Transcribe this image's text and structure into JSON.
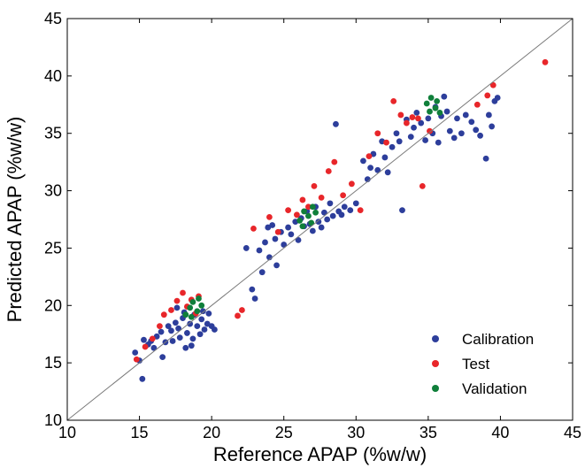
{
  "chart_data": {
    "type": "scatter",
    "xlabel": "Reference APAP (%w/w)",
    "ylabel": "Predicted APAP (%w/w)",
    "xlim": [
      10,
      45
    ],
    "ylim": [
      10,
      45
    ],
    "xticks": [
      10,
      15,
      20,
      25,
      30,
      35,
      40,
      45
    ],
    "yticks": [
      10,
      15,
      20,
      25,
      30,
      35,
      40,
      45
    ],
    "grid": false,
    "legend_position": "bottom-right",
    "reference_line": "y = x",
    "series": [
      {
        "name": "Calibration",
        "color": "#2d3e9b",
        "points": [
          [
            14.7,
            15.9
          ],
          [
            15.0,
            15.2
          ],
          [
            15.2,
            13.6
          ],
          [
            15.3,
            17.0
          ],
          [
            15.6,
            16.6
          ],
          [
            15.8,
            16.9
          ],
          [
            16.0,
            16.3
          ],
          [
            16.2,
            17.3
          ],
          [
            16.5,
            17.7
          ],
          [
            16.6,
            15.5
          ],
          [
            16.8,
            16.8
          ],
          [
            17.0,
            18.2
          ],
          [
            17.2,
            17.8
          ],
          [
            17.3,
            16.9
          ],
          [
            17.5,
            18.5
          ],
          [
            17.7,
            18.0
          ],
          [
            17.8,
            17.2
          ],
          [
            18.0,
            18.9
          ],
          [
            18.2,
            16.3
          ],
          [
            18.3,
            17.6
          ],
          [
            18.5,
            18.4
          ],
          [
            18.7,
            17.1
          ],
          [
            18.8,
            19.2
          ],
          [
            19.0,
            18.2
          ],
          [
            19.2,
            17.5
          ],
          [
            19.3,
            18.8
          ],
          [
            19.5,
            17.9
          ],
          [
            19.7,
            18.4
          ],
          [
            19.8,
            19.3
          ],
          [
            20.0,
            18.2
          ],
          [
            20.2,
            17.9
          ],
          [
            18.1,
            19.4
          ],
          [
            17.6,
            19.8
          ],
          [
            19.4,
            19.5
          ],
          [
            18.6,
            16.5
          ],
          [
            22.4,
            25.0
          ],
          [
            22.8,
            21.4
          ],
          [
            23.0,
            20.6
          ],
          [
            23.3,
            24.8
          ],
          [
            23.5,
            22.9
          ],
          [
            23.7,
            25.5
          ],
          [
            23.9,
            26.8
          ],
          [
            24.0,
            24.2
          ],
          [
            24.2,
            27.0
          ],
          [
            24.4,
            25.8
          ],
          [
            24.5,
            23.5
          ],
          [
            24.8,
            26.4
          ],
          [
            25.0,
            25.3
          ],
          [
            25.3,
            26.8
          ],
          [
            25.5,
            26.2
          ],
          [
            25.8,
            27.3
          ],
          [
            26.0,
            25.7
          ],
          [
            26.2,
            27.6
          ],
          [
            26.4,
            26.9
          ],
          [
            26.6,
            28.2
          ],
          [
            26.8,
            27.1
          ],
          [
            27.0,
            26.5
          ],
          [
            27.2,
            28.6
          ],
          [
            27.4,
            27.3
          ],
          [
            27.6,
            26.8
          ],
          [
            27.8,
            28.1
          ],
          [
            28.0,
            27.5
          ],
          [
            28.2,
            28.9
          ],
          [
            28.4,
            27.8
          ],
          [
            28.6,
            35.8
          ],
          [
            28.8,
            28.2
          ],
          [
            29.0,
            27.9
          ],
          [
            29.2,
            28.6
          ],
          [
            29.6,
            28.3
          ],
          [
            30.0,
            28.9
          ],
          [
            30.5,
            32.6
          ],
          [
            30.8,
            31.0
          ],
          [
            31.0,
            32.0
          ],
          [
            31.2,
            33.2
          ],
          [
            31.5,
            31.8
          ],
          [
            31.8,
            34.3
          ],
          [
            32.0,
            32.9
          ],
          [
            32.2,
            31.6
          ],
          [
            32.5,
            33.8
          ],
          [
            32.8,
            35.0
          ],
          [
            33.0,
            34.3
          ],
          [
            33.2,
            28.3
          ],
          [
            33.5,
            36.2
          ],
          [
            33.8,
            34.7
          ],
          [
            34.0,
            35.5
          ],
          [
            34.2,
            36.8
          ],
          [
            34.5,
            35.9
          ],
          [
            34.8,
            34.4
          ],
          [
            35.0,
            36.3
          ],
          [
            35.3,
            35.0
          ],
          [
            35.5,
            37.3
          ],
          [
            35.7,
            34.2
          ],
          [
            35.9,
            36.5
          ],
          [
            36.1,
            38.2
          ],
          [
            36.3,
            36.9
          ],
          [
            36.5,
            35.2
          ],
          [
            36.8,
            34.6
          ],
          [
            37.0,
            36.3
          ],
          [
            37.3,
            35.0
          ],
          [
            37.6,
            36.6
          ],
          [
            38.0,
            36.0
          ],
          [
            38.3,
            35.3
          ],
          [
            38.6,
            34.8
          ],
          [
            39.0,
            32.8
          ],
          [
            39.2,
            36.6
          ],
          [
            39.4,
            35.6
          ],
          [
            39.6,
            37.8
          ],
          [
            39.8,
            38.1
          ]
        ]
      },
      {
        "name": "Test",
        "color": "#e8262a",
        "points": [
          [
            14.8,
            15.3
          ],
          [
            15.4,
            16.4
          ],
          [
            15.9,
            17.1
          ],
          [
            16.4,
            18.2
          ],
          [
            16.7,
            19.2
          ],
          [
            17.2,
            19.6
          ],
          [
            17.6,
            20.4
          ],
          [
            18.0,
            21.1
          ],
          [
            18.3,
            19.9
          ],
          [
            18.6,
            20.5
          ],
          [
            18.9,
            19.3
          ],
          [
            19.1,
            20.8
          ],
          [
            21.8,
            19.1
          ],
          [
            22.1,
            19.6
          ],
          [
            22.9,
            26.7
          ],
          [
            24.0,
            27.7
          ],
          [
            24.6,
            26.4
          ],
          [
            25.3,
            28.3
          ],
          [
            25.9,
            27.9
          ],
          [
            26.3,
            29.2
          ],
          [
            26.7,
            28.6
          ],
          [
            27.1,
            30.4
          ],
          [
            27.6,
            29.4
          ],
          [
            28.1,
            31.7
          ],
          [
            28.5,
            32.5
          ],
          [
            29.1,
            29.6
          ],
          [
            29.7,
            30.6
          ],
          [
            30.3,
            28.3
          ],
          [
            30.9,
            33.0
          ],
          [
            31.5,
            35.0
          ],
          [
            32.1,
            34.2
          ],
          [
            32.6,
            37.8
          ],
          [
            33.1,
            36.6
          ],
          [
            33.5,
            35.9
          ],
          [
            33.9,
            36.4
          ],
          [
            34.3,
            36.3
          ],
          [
            34.6,
            30.4
          ],
          [
            35.1,
            35.2
          ],
          [
            38.4,
            37.5
          ],
          [
            39.1,
            38.3
          ],
          [
            39.5,
            39.2
          ],
          [
            43.1,
            41.2
          ]
        ]
      },
      {
        "name": "Validation",
        "color": "#0f7f3a",
        "points": [
          [
            18.2,
            19.2
          ],
          [
            18.5,
            19.8
          ],
          [
            18.7,
            20.3
          ],
          [
            19.0,
            19.5
          ],
          [
            19.3,
            20.0
          ],
          [
            18.6,
            19.0
          ],
          [
            19.1,
            20.6
          ],
          [
            26.1,
            27.4
          ],
          [
            26.4,
            28.2
          ],
          [
            26.7,
            27.8
          ],
          [
            27.0,
            28.6
          ],
          [
            26.3,
            26.9
          ],
          [
            26.9,
            27.2
          ],
          [
            27.2,
            28.1
          ],
          [
            34.9,
            37.6
          ],
          [
            35.2,
            38.1
          ],
          [
            35.5,
            37.2
          ],
          [
            35.8,
            36.8
          ],
          [
            35.1,
            36.9
          ],
          [
            35.6,
            37.8
          ]
        ]
      }
    ]
  }
}
